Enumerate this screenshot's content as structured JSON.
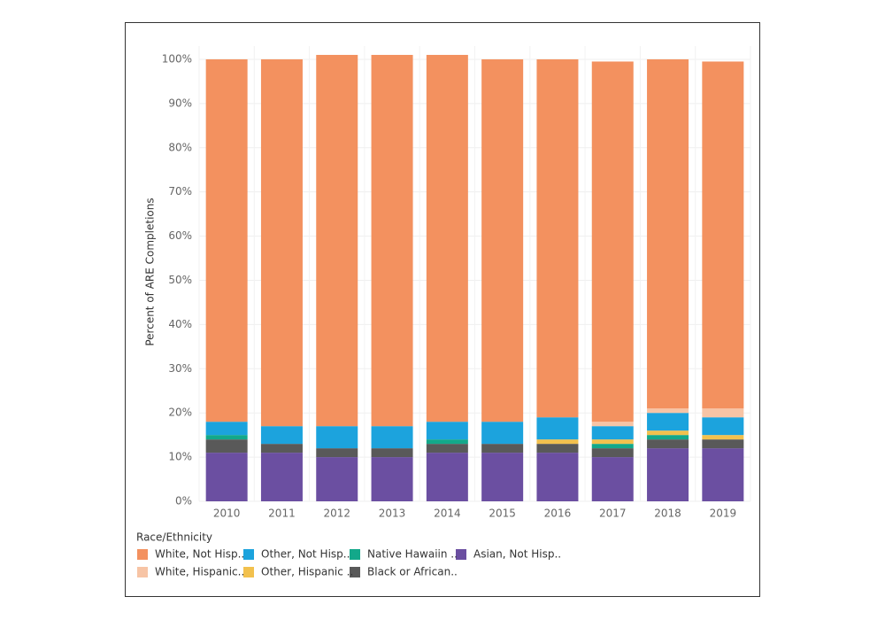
{
  "chart_data": {
    "type": "stacked-bar",
    "y_label": "Percent of ARE Completions",
    "legend_title": "Race/Ethnicity",
    "categories": [
      "2010",
      "2011",
      "2012",
      "2013",
      "2014",
      "2015",
      "2016",
      "2017",
      "2018",
      "2019"
    ],
    "series": [
      {
        "name": "Asian, Not Hisp..",
        "color": "#6b4fa1",
        "values": [
          11,
          11,
          10,
          10,
          11,
          11,
          11,
          10,
          12,
          12
        ]
      },
      {
        "name": "Black or African..",
        "color": "#595959",
        "values": [
          3,
          2,
          2,
          2,
          2,
          2,
          2,
          2,
          2,
          2
        ]
      },
      {
        "name": "Native Hawaiin ..",
        "color": "#13a88a",
        "values": [
          1,
          0,
          0,
          0,
          1,
          0,
          0,
          1,
          1,
          0
        ]
      },
      {
        "name": "Other, Hispanic ..",
        "color": "#f2c14e",
        "values": [
          0,
          0,
          0,
          0,
          0,
          0,
          1,
          1,
          1,
          1
        ]
      },
      {
        "name": "Other, Not Hisp..",
        "color": "#1ca3dd",
        "values": [
          3,
          4,
          5,
          5,
          4,
          5,
          5,
          3,
          4,
          4
        ]
      },
      {
        "name": "White, Hispanic..",
        "color": "#f7c4a5",
        "values": [
          0,
          0,
          0,
          0,
          0,
          0,
          0,
          1,
          1,
          2
        ]
      },
      {
        "name": "White, Not Hisp..",
        "color": "#f3915f",
        "values": [
          82,
          83,
          84,
          84,
          83,
          82,
          81,
          81.5,
          79,
          78.5
        ]
      }
    ],
    "ylim": [
      0,
      103
    ],
    "yticks": [
      {
        "value": 0,
        "label": "0%"
      },
      {
        "value": 10,
        "label": "10%"
      },
      {
        "value": 20,
        "label": "20%"
      },
      {
        "value": 30,
        "label": "30%"
      },
      {
        "value": 40,
        "label": "40%"
      },
      {
        "value": 50,
        "label": "50%"
      },
      {
        "value": 60,
        "label": "60%"
      },
      {
        "value": 70,
        "label": "70%"
      },
      {
        "value": 80,
        "label": "80%"
      },
      {
        "value": 90,
        "label": "90%"
      },
      {
        "value": 100,
        "label": "100%"
      }
    ],
    "grid": true
  }
}
